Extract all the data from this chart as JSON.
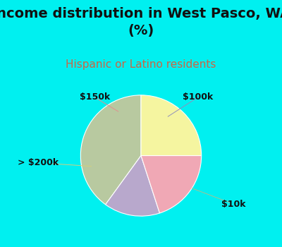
{
  "title": "Income distribution in West Pasco, WA\n(%)",
  "subtitle": "Hispanic or Latino residents",
  "labels": [
    "$10k",
    "$100k",
    "$150k",
    "> $200k"
  ],
  "values": [
    40,
    15,
    20,
    25
  ],
  "colors": [
    "#b8c9a0",
    "#b8a8cc",
    "#f0a8b5",
    "#f5f5a0"
  ],
  "background_color": "#00f0f0",
  "title_fontsize": 14,
  "subtitle_fontsize": 11,
  "subtitle_color": "#cc6644",
  "startangle": 90,
  "label_fontsize": 9
}
